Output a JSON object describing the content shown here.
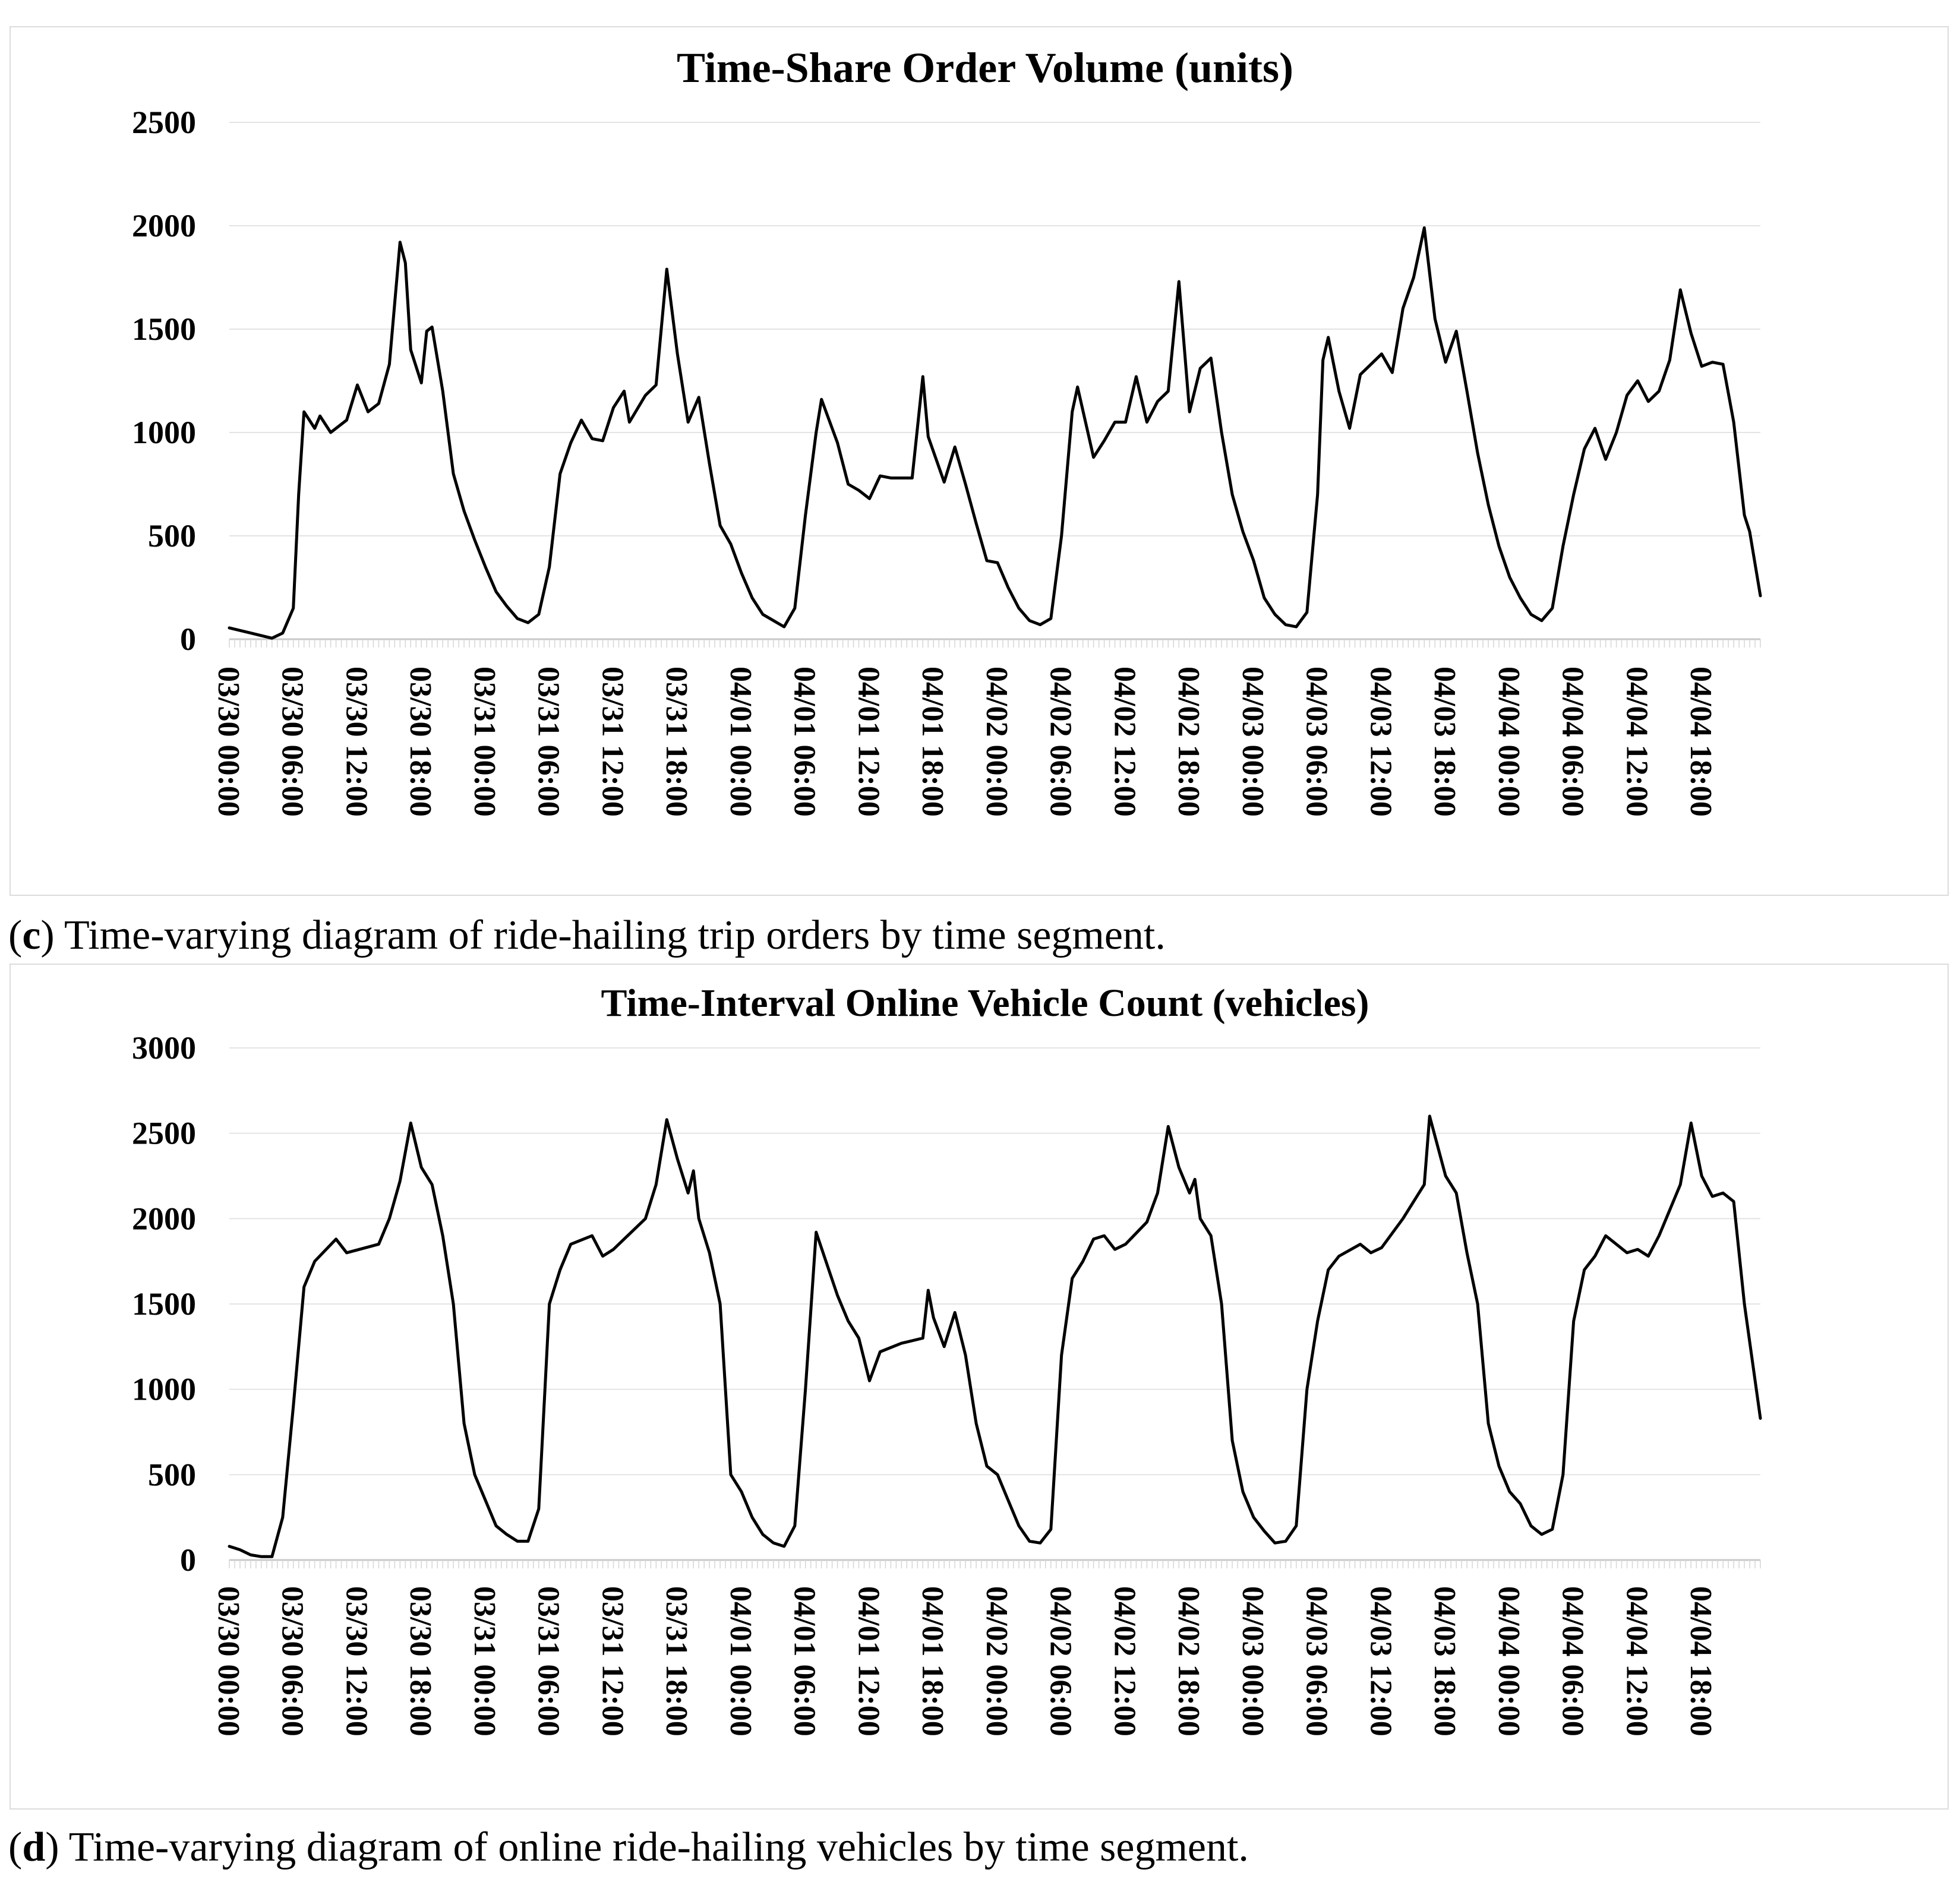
{
  "panels": [
    {
      "caption_letter": "c",
      "caption_text": "Time-varying diagram of ride-hailing trip orders by time segment."
    },
    {
      "caption_letter": "d",
      "caption_text": "Time-varying diagram of online ride-hailing vehicles by time segment."
    }
  ],
  "chart_data": [
    {
      "type": "line",
      "title": "Time-Share Order Volume (units)",
      "xlabel": "",
      "ylabel": "",
      "ylim": [
        0,
        2500
      ],
      "yticks": [
        0,
        500,
        1000,
        1500,
        2000,
        2500
      ],
      "xlim": [
        "03/30 00:00",
        "04/04 23:30"
      ],
      "xtick_labels": [
        "03/30 00:00",
        "03/30 06:00",
        "03/30 12:00",
        "03/30 18:00",
        "03/31 00:00",
        "03/31 06:00",
        "03/31 12:00",
        "03/31 18:00",
        "04/01 00:00",
        "04/01 06:00",
        "04/01 12:00",
        "04/01 18:00",
        "04/02 00:00",
        "04/02 06:00",
        "04/02 12:00",
        "04/02 18:00",
        "04/03 00:00",
        "04/03 06:00",
        "04/03 12:00",
        "04/03 18:00",
        "04/04 00:00",
        "04/04 06:00",
        "04/04 12:00",
        "04/04 18:00"
      ],
      "grid": "horizontal",
      "legend": "none",
      "line_color": "#000000",
      "points": [
        [
          "03/30 00:00",
          55
        ],
        [
          "03/30 02:00",
          30
        ],
        [
          "03/30 04:00",
          5
        ],
        [
          "03/30 05:00",
          30
        ],
        [
          "03/30 06:00",
          150
        ],
        [
          "03/30 06:30",
          700
        ],
        [
          "03/30 07:00",
          1100
        ],
        [
          "03/30 08:00",
          1020
        ],
        [
          "03/30 08:30",
          1080
        ],
        [
          "03/30 09:30",
          1000
        ],
        [
          "03/30 11:00",
          1060
        ],
        [
          "03/30 12:00",
          1230
        ],
        [
          "03/30 13:00",
          1100
        ],
        [
          "03/30 14:00",
          1140
        ],
        [
          "03/30 15:00",
          1330
        ],
        [
          "03/30 16:00",
          1920
        ],
        [
          "03/30 16:30",
          1820
        ],
        [
          "03/30 17:00",
          1400
        ],
        [
          "03/30 18:00",
          1240
        ],
        [
          "03/30 18:30",
          1490
        ],
        [
          "03/30 19:00",
          1510
        ],
        [
          "03/30 20:00",
          1200
        ],
        [
          "03/30 21:00",
          800
        ],
        [
          "03/30 22:00",
          620
        ],
        [
          "03/30 23:00",
          480
        ],
        [
          "03/31 00:00",
          350
        ],
        [
          "03/31 01:00",
          230
        ],
        [
          "03/31 02:00",
          160
        ],
        [
          "03/31 03:00",
          100
        ],
        [
          "03/31 04:00",
          80
        ],
        [
          "03/31 05:00",
          120
        ],
        [
          "03/31 06:00",
          350
        ],
        [
          "03/31 07:00",
          800
        ],
        [
          "03/31 08:00",
          950
        ],
        [
          "03/31 09:00",
          1060
        ],
        [
          "03/31 10:00",
          970
        ],
        [
          "03/31 11:00",
          960
        ],
        [
          "03/31 12:00",
          1120
        ],
        [
          "03/31 13:00",
          1200
        ],
        [
          "03/31 13:30",
          1050
        ],
        [
          "03/31 15:00",
          1180
        ],
        [
          "03/31 16:00",
          1230
        ],
        [
          "03/31 17:00",
          1790
        ],
        [
          "03/31 18:00",
          1380
        ],
        [
          "03/31 19:00",
          1050
        ],
        [
          "03/31 20:00",
          1170
        ],
        [
          "03/31 21:00",
          850
        ],
        [
          "03/31 22:00",
          550
        ],
        [
          "03/31 23:00",
          460
        ],
        [
          "04/01 00:00",
          320
        ],
        [
          "04/01 01:00",
          200
        ],
        [
          "04/01 02:00",
          120
        ],
        [
          "04/01 03:00",
          90
        ],
        [
          "04/01 04:00",
          60
        ],
        [
          "04/01 05:00",
          150
        ],
        [
          "04/01 06:00",
          600
        ],
        [
          "04/01 07:00",
          1000
        ],
        [
          "04/01 07:30",
          1160
        ],
        [
          "04/01 09:00",
          950
        ],
        [
          "04/01 10:00",
          750
        ],
        [
          "04/01 11:00",
          720
        ],
        [
          "04/01 12:00",
          680
        ],
        [
          "04/01 13:00",
          790
        ],
        [
          "04/01 14:00",
          780
        ],
        [
          "04/01 16:00",
          780
        ],
        [
          "04/01 17:00",
          1270
        ],
        [
          "04/01 17:30",
          980
        ],
        [
          "04/01 19:00",
          760
        ],
        [
          "04/01 20:00",
          930
        ],
        [
          "04/01 21:00",
          750
        ],
        [
          "04/01 22:00",
          560
        ],
        [
          "04/01 23:00",
          380
        ],
        [
          "04/02 00:00",
          370
        ],
        [
          "04/02 01:00",
          250
        ],
        [
          "04/02 02:00",
          150
        ],
        [
          "04/02 03:00",
          90
        ],
        [
          "04/02 04:00",
          70
        ],
        [
          "04/02 05:00",
          100
        ],
        [
          "04/02 06:00",
          500
        ],
        [
          "04/02 07:00",
          1100
        ],
        [
          "04/02 07:30",
          1220
        ],
        [
          "04/02 09:00",
          880
        ],
        [
          "04/02 10:00",
          960
        ],
        [
          "04/02 11:00",
          1050
        ],
        [
          "04/02 12:00",
          1050
        ],
        [
          "04/02 13:00",
          1270
        ],
        [
          "04/02 14:00",
          1050
        ],
        [
          "04/02 15:00",
          1150
        ],
        [
          "04/02 16:00",
          1200
        ],
        [
          "04/02 17:00",
          1730
        ],
        [
          "04/02 18:00",
          1100
        ],
        [
          "04/02 19:00",
          1310
        ],
        [
          "04/02 20:00",
          1360
        ],
        [
          "04/02 21:00",
          1000
        ],
        [
          "04/02 22:00",
          700
        ],
        [
          "04/02 23:00",
          520
        ],
        [
          "04/03 00:00",
          380
        ],
        [
          "04/03 01:00",
          200
        ],
        [
          "04/03 02:00",
          120
        ],
        [
          "04/03 03:00",
          70
        ],
        [
          "04/03 04:00",
          60
        ],
        [
          "04/03 05:00",
          130
        ],
        [
          "04/03 06:00",
          700
        ],
        [
          "04/03 06:30",
          1350
        ],
        [
          "04/03 07:00",
          1460
        ],
        [
          "04/03 08:00",
          1200
        ],
        [
          "04/03 09:00",
          1020
        ],
        [
          "04/03 10:00",
          1280
        ],
        [
          "04/03 12:00",
          1380
        ],
        [
          "04/03 13:00",
          1290
        ],
        [
          "04/03 14:00",
          1600
        ],
        [
          "04/03 15:00",
          1750
        ],
        [
          "04/03 16:00",
          1990
        ],
        [
          "04/03 17:00",
          1550
        ],
        [
          "04/03 18:00",
          1340
        ],
        [
          "04/03 19:00",
          1490
        ],
        [
          "04/03 20:00",
          1200
        ],
        [
          "04/03 21:00",
          900
        ],
        [
          "04/03 22:00",
          650
        ],
        [
          "04/03 23:00",
          450
        ],
        [
          "04/04 00:00",
          300
        ],
        [
          "04/04 01:00",
          200
        ],
        [
          "04/04 02:00",
          120
        ],
        [
          "04/04 03:00",
          90
        ],
        [
          "04/04 04:00",
          150
        ],
        [
          "04/04 05:00",
          450
        ],
        [
          "04/04 06:00",
          700
        ],
        [
          "04/04 07:00",
          920
        ],
        [
          "04/04 08:00",
          1020
        ],
        [
          "04/04 09:00",
          870
        ],
        [
          "04/04 10:00",
          1000
        ],
        [
          "04/04 11:00",
          1180
        ],
        [
          "04/04 12:00",
          1250
        ],
        [
          "04/04 13:00",
          1150
        ],
        [
          "04/04 14:00",
          1200
        ],
        [
          "04/04 15:00",
          1350
        ],
        [
          "04/04 16:00",
          1690
        ],
        [
          "04/04 17:00",
          1480
        ],
        [
          "04/04 18:00",
          1320
        ],
        [
          "04/04 19:00",
          1340
        ],
        [
          "04/04 20:00",
          1330
        ],
        [
          "04/04 21:00",
          1050
        ],
        [
          "04/04 22:00",
          600
        ],
        [
          "04/04 22:30",
          520
        ],
        [
          "04/04 23:30",
          210
        ]
      ]
    },
    {
      "type": "line",
      "title": "Time-Interval Online Vehicle Count (vehicles)",
      "xlabel": "",
      "ylabel": "",
      "ylim": [
        0,
        3000
      ],
      "yticks": [
        0,
        500,
        1000,
        1500,
        2000,
        2500,
        3000
      ],
      "xlim": [
        "03/30 00:00",
        "04/04 23:30"
      ],
      "xtick_labels": [
        "03/30 00:00",
        "03/30 06:00",
        "03/30 12:00",
        "03/30 18:00",
        "03/31 00:00",
        "03/31 06:00",
        "03/31 12:00",
        "03/31 18:00",
        "04/01 00:00",
        "04/01 06:00",
        "04/01 12:00",
        "04/01 18:00",
        "04/02 00:00",
        "04/02 06:00",
        "04/02 12:00",
        "04/02 18:00",
        "04/03 00:00",
        "04/03 06:00",
        "04/03 12:00",
        "04/03 18:00",
        "04/04 00:00",
        "04/04 06:00",
        "04/04 12:00",
        "04/04 18:00"
      ],
      "grid": "horizontal",
      "legend": "none",
      "line_color": "#000000",
      "points": [
        [
          "03/30 00:00",
          80
        ],
        [
          "03/30 01:00",
          60
        ],
        [
          "03/30 02:00",
          30
        ],
        [
          "03/30 03:00",
          20
        ],
        [
          "03/30 04:00",
          20
        ],
        [
          "03/30 05:00",
          250
        ],
        [
          "03/30 06:00",
          900
        ],
        [
          "03/30 07:00",
          1600
        ],
        [
          "03/30 08:00",
          1750
        ],
        [
          "03/30 10:00",
          1880
        ],
        [
          "03/30 11:00",
          1800
        ],
        [
          "03/30 14:00",
          1850
        ],
        [
          "03/30 15:00",
          2000
        ],
        [
          "03/30 16:00",
          2220
        ],
        [
          "03/30 17:00",
          2560
        ],
        [
          "03/30 18:00",
          2300
        ],
        [
          "03/30 19:00",
          2200
        ],
        [
          "03/30 20:00",
          1900
        ],
        [
          "03/30 21:00",
          1500
        ],
        [
          "03/30 22:00",
          800
        ],
        [
          "03/30 23:00",
          500
        ],
        [
          "03/31 00:00",
          350
        ],
        [
          "03/31 01:00",
          200
        ],
        [
          "03/31 02:00",
          150
        ],
        [
          "03/31 03:00",
          110
        ],
        [
          "03/31 04:00",
          110
        ],
        [
          "03/31 05:00",
          300
        ],
        [
          "03/31 06:00",
          1500
        ],
        [
          "03/31 07:00",
          1700
        ],
        [
          "03/31 08:00",
          1850
        ],
        [
          "03/31 10:00",
          1900
        ],
        [
          "03/31 11:00",
          1780
        ],
        [
          "03/31 12:00",
          1820
        ],
        [
          "03/31 15:00",
          2000
        ],
        [
          "03/31 16:00",
          2200
        ],
        [
          "03/31 17:00",
          2580
        ],
        [
          "03/31 18:00",
          2350
        ],
        [
          "03/31 19:00",
          2150
        ],
        [
          "03/31 19:30",
          2280
        ],
        [
          "03/31 20:00",
          2000
        ],
        [
          "03/31 21:00",
          1800
        ],
        [
          "03/31 22:00",
          1500
        ],
        [
          "03/31 23:00",
          500
        ],
        [
          "04/01 00:00",
          400
        ],
        [
          "04/01 01:00",
          250
        ],
        [
          "04/01 02:00",
          150
        ],
        [
          "04/01 03:00",
          100
        ],
        [
          "04/01 04:00",
          80
        ],
        [
          "04/01 05:00",
          200
        ],
        [
          "04/01 06:00",
          1000
        ],
        [
          "04/01 07:00",
          1920
        ],
        [
          "04/01 09:00",
          1550
        ],
        [
          "04/01 10:00",
          1400
        ],
        [
          "04/01 11:00",
          1300
        ],
        [
          "04/01 12:00",
          1050
        ],
        [
          "04/01 13:00",
          1220
        ],
        [
          "04/01 15:00",
          1270
        ],
        [
          "04/01 17:00",
          1300
        ],
        [
          "04/01 17:30",
          1580
        ],
        [
          "04/01 18:00",
          1420
        ],
        [
          "04/01 19:00",
          1250
        ],
        [
          "04/01 20:00",
          1450
        ],
        [
          "04/01 21:00",
          1200
        ],
        [
          "04/01 22:00",
          800
        ],
        [
          "04/01 23:00",
          550
        ],
        [
          "04/02 00:00",
          500
        ],
        [
          "04/02 01:00",
          350
        ],
        [
          "04/02 02:00",
          200
        ],
        [
          "04/02 03:00",
          110
        ],
        [
          "04/02 04:00",
          100
        ],
        [
          "04/02 05:00",
          180
        ],
        [
          "04/02 06:00",
          1200
        ],
        [
          "04/02 07:00",
          1650
        ],
        [
          "04/02 08:00",
          1750
        ],
        [
          "04/02 09:00",
          1880
        ],
        [
          "04/02 10:00",
          1900
        ],
        [
          "04/02 11:00",
          1820
        ],
        [
          "04/02 12:00",
          1850
        ],
        [
          "04/02 14:00",
          1980
        ],
        [
          "04/02 15:00",
          2150
        ],
        [
          "04/02 16:00",
          2540
        ],
        [
          "04/02 17:00",
          2300
        ],
        [
          "04/02 18:00",
          2150
        ],
        [
          "04/02 18:30",
          2230
        ],
        [
          "04/02 19:00",
          2000
        ],
        [
          "04/02 20:00",
          1900
        ],
        [
          "04/02 21:00",
          1500
        ],
        [
          "04/02 22:00",
          700
        ],
        [
          "04/02 23:00",
          400
        ],
        [
          "04/03 00:00",
          250
        ],
        [
          "04/03 01:00",
          170
        ],
        [
          "04/03 02:00",
          100
        ],
        [
          "04/03 03:00",
          110
        ],
        [
          "04/03 04:00",
          200
        ],
        [
          "04/03 05:00",
          1000
        ],
        [
          "04/03 06:00",
          1400
        ],
        [
          "04/03 07:00",
          1700
        ],
        [
          "04/03 08:00",
          1780
        ],
        [
          "04/03 10:00",
          1850
        ],
        [
          "04/03 11:00",
          1800
        ],
        [
          "04/03 12:00",
          1830
        ],
        [
          "04/03 14:00",
          2000
        ],
        [
          "04/03 16:00",
          2200
        ],
        [
          "04/03 16:30",
          2600
        ],
        [
          "04/03 18:00",
          2250
        ],
        [
          "04/03 19:00",
          2150
        ],
        [
          "04/03 20:00",
          1800
        ],
        [
          "04/03 21:00",
          1500
        ],
        [
          "04/03 22:00",
          800
        ],
        [
          "04/03 23:00",
          550
        ],
        [
          "04/04 00:00",
          400
        ],
        [
          "04/04 01:00",
          330
        ],
        [
          "04/04 02:00",
          200
        ],
        [
          "04/04 03:00",
          150
        ],
        [
          "04/04 04:00",
          180
        ],
        [
          "04/04 05:00",
          500
        ],
        [
          "04/04 06:00",
          1400
        ],
        [
          "04/04 07:00",
          1700
        ],
        [
          "04/04 08:00",
          1780
        ],
        [
          "04/04 09:00",
          1900
        ],
        [
          "04/04 10:00",
          1850
        ],
        [
          "04/04 11:00",
          1800
        ],
        [
          "04/04 12:00",
          1820
        ],
        [
          "04/04 13:00",
          1780
        ],
        [
          "04/04 14:00",
          1900
        ],
        [
          "04/04 15:00",
          2050
        ],
        [
          "04/04 16:00",
          2200
        ],
        [
          "04/04 17:00",
          2560
        ],
        [
          "04/04 18:00",
          2250
        ],
        [
          "04/04 19:00",
          2130
        ],
        [
          "04/04 20:00",
          2150
        ],
        [
          "04/04 21:00",
          2100
        ],
        [
          "04/04 22:00",
          1500
        ],
        [
          "04/04 23:30",
          830
        ]
      ]
    }
  ]
}
